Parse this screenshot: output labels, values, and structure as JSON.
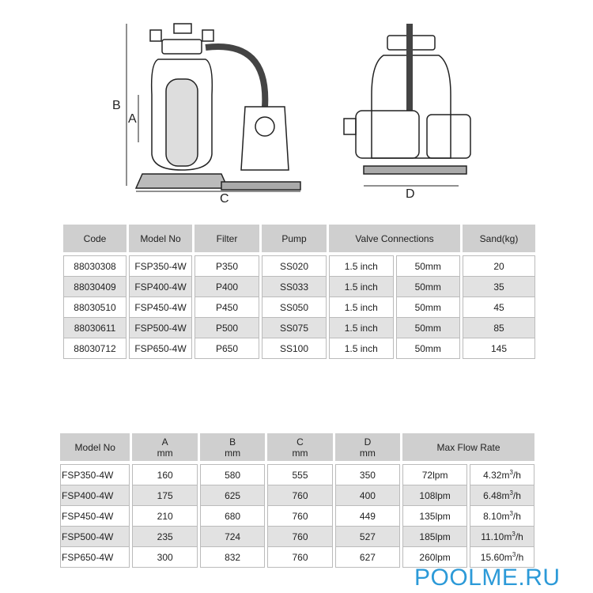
{
  "diagram": {
    "labels": {
      "a": "A",
      "b": "B",
      "c": "C",
      "d": "D"
    }
  },
  "table1": {
    "headers": [
      "Code",
      "Model No",
      "Filter",
      "Pump",
      "Valve Connections",
      "Sand(kg)"
    ],
    "rows": [
      [
        "88030308",
        "FSP350-4W",
        "P350",
        "SS020",
        "1.5 inch",
        "50mm",
        "20"
      ],
      [
        "88030409",
        "FSP400-4W",
        "P400",
        "SS033",
        "1.5 inch",
        "50mm",
        "35"
      ],
      [
        "88030510",
        "FSP450-4W",
        "P450",
        "SS050",
        "1.5 inch",
        "50mm",
        "45"
      ],
      [
        "88030611",
        "FSP500-4W",
        "P500",
        "SS075",
        "1.5 inch",
        "50mm",
        "85"
      ],
      [
        "88030712",
        "FSP650-4W",
        "P650",
        "SS100",
        "1.5 inch",
        "50mm",
        "145"
      ]
    ]
  },
  "table2": {
    "headers": [
      {
        "top": "Model No",
        "unit": ""
      },
      {
        "top": "A",
        "unit": "mm"
      },
      {
        "top": "B",
        "unit": "mm"
      },
      {
        "top": "C",
        "unit": "mm"
      },
      {
        "top": "D",
        "unit": "mm"
      },
      {
        "top": "Max Flow Rate",
        "unit": ""
      }
    ],
    "flow_unit_suffix": "/h",
    "rows": [
      [
        "FSP350-4W",
        "160",
        "580",
        "555",
        "350",
        "72lpm",
        "4.32m",
        "3"
      ],
      [
        "FSP400-4W",
        "175",
        "625",
        "760",
        "400",
        "108lpm",
        "6.48m",
        "3"
      ],
      [
        "FSP450-4W",
        "210",
        "680",
        "760",
        "449",
        "135lpm",
        "8.10m",
        "3"
      ],
      [
        "FSP500-4W",
        "235",
        "724",
        "760",
        "527",
        "185lpm",
        "11.10m",
        "3"
      ],
      [
        "FSP650-4W",
        "300",
        "832",
        "760",
        "627",
        "260lpm",
        "15.60m",
        "3"
      ]
    ]
  },
  "watermark": "POOLME.RU"
}
